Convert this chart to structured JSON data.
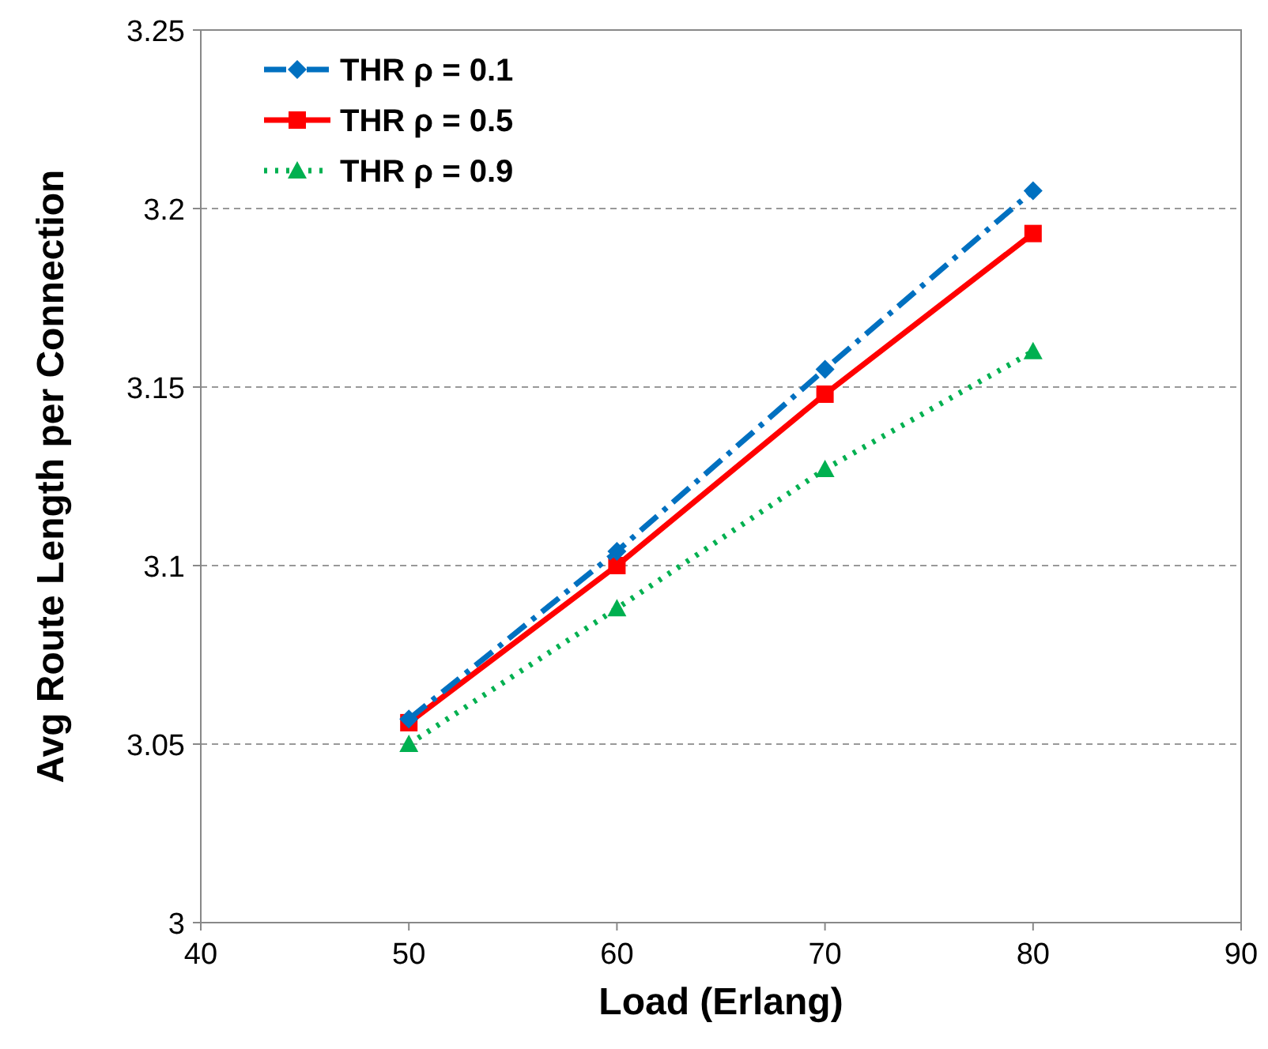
{
  "chart_data": {
    "type": "line",
    "xlabel": "Load (Erlang)",
    "ylabel": "Avg Route Length per Connection",
    "x": [
      50,
      60,
      70,
      80
    ],
    "xlim": [
      40,
      90
    ],
    "xticks": [
      40,
      50,
      60,
      70,
      80,
      90
    ],
    "ylim": [
      3,
      3.25
    ],
    "yticks": [
      3,
      3.05,
      3.1,
      3.15,
      3.2,
      3.25
    ],
    "grid": "y",
    "legend": "top left",
    "series": [
      {
        "name": "THR ρ = 0.1",
        "color": "#0070c0",
        "marker": "diamond",
        "line_style": "dashdot",
        "values": [
          3.057,
          3.104,
          3.155,
          3.205
        ]
      },
      {
        "name": "THR ρ = 0.5",
        "color": "#ff0000",
        "marker": "square",
        "line_style": "solid",
        "values": [
          3.056,
          3.1,
          3.148,
          3.193
        ]
      },
      {
        "name": "THR ρ = 0.9",
        "color": "#00b050",
        "marker": "triangle",
        "line_style": "dotted",
        "values": [
          3.05,
          3.088,
          3.127,
          3.16
        ]
      }
    ]
  }
}
